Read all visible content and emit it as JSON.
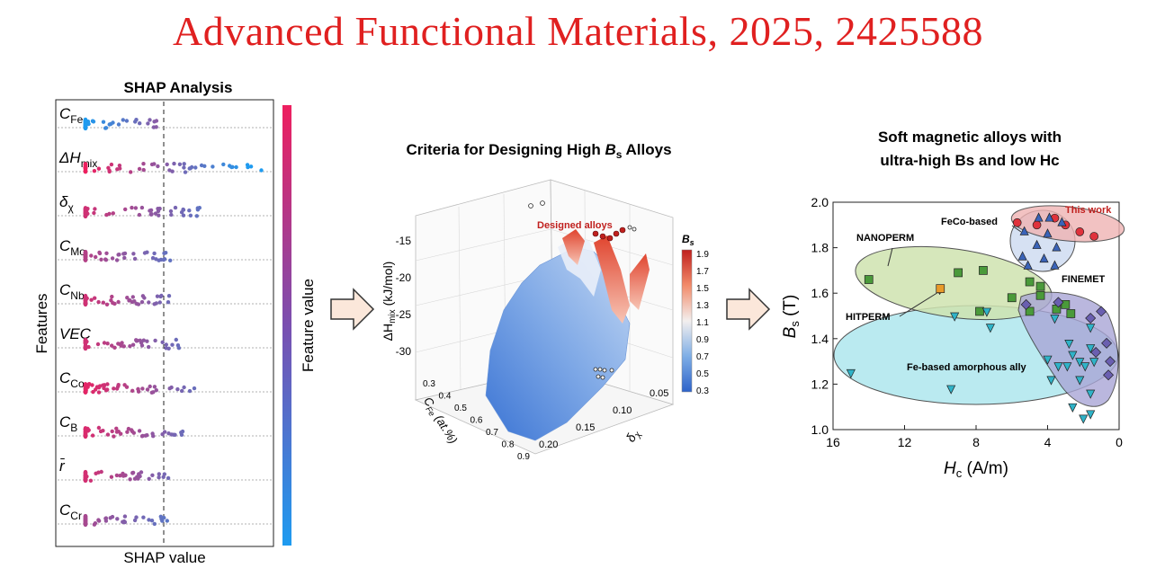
{
  "headline": "Advanced Functional Materials, 2025, 2425588",
  "colors": {
    "headline": "#e02020",
    "high": "#ee1f5f",
    "low": "#1e9bf0",
    "mid": "#7a4fb0"
  },
  "panel_left": {
    "title": "SHAP Analysis",
    "ylabel": "Features",
    "xlabel": "SHAP value",
    "colorbar_label": "Feature value",
    "features": [
      {
        "sym": "C",
        "sub": "Fe"
      },
      {
        "sym": "ΔH",
        "sub": "mix"
      },
      {
        "sym": "δ",
        "sub": "χ"
      },
      {
        "sym": "C",
        "sub": "Mo"
      },
      {
        "sym": "C",
        "sub": "Nb"
      },
      {
        "sym": "VEC",
        "sub": ""
      },
      {
        "sym": "C",
        "sub": "Co"
      },
      {
        "sym": "C",
        "sub": "B"
      },
      {
        "sym": "r̄",
        "sub": ""
      },
      {
        "sym": "C",
        "sub": "Cr"
      }
    ]
  },
  "panel_mid": {
    "title_pre": "Criteria for Designing High ",
    "title_sym": "B",
    "title_sub": "s",
    "title_post": " Alloys",
    "annotation": "Designed alloys",
    "zlabel": "ΔH",
    "zlabel_sub": "mix",
    "zlabel_post": " (kJ/mol)",
    "z_ticks": [
      "-15",
      "-20",
      "-25",
      "-30"
    ],
    "x_label": "C",
    "x_label_sub": "Fe",
    "x_label_post": " (at.%)",
    "x_ticks": [
      "0.3",
      "0.4",
      "0.5",
      "0.6",
      "0.7",
      "0.8",
      "0.9"
    ],
    "y_label": "δ",
    "y_label_sub": "χ",
    "y_ticks": [
      "0.05",
      "0.10",
      "0.15",
      "0.20"
    ],
    "colorbar_title": "B",
    "colorbar_title_sub": "s",
    "colorbar_ticks": [
      "1.9",
      "1.7",
      "1.5",
      "1.3",
      "1.1",
      "0.9",
      "0.7",
      "0.5",
      "0.3"
    ]
  },
  "panel_right": {
    "title_line1": "Soft magnetic alloys with",
    "title_line2": "ultra-high Bs and low Hc",
    "chart_data": {
      "type": "scatter",
      "xlabel": "H",
      "xlabel_sub": "c",
      "xlabel_post": " (A/m)",
      "ylabel": "B",
      "ylabel_sub": "s",
      "ylabel_post": " (T)",
      "xlim": [
        16,
        0
      ],
      "ylim": [
        1.0,
        2.0
      ],
      "x_ticks": [
        "16",
        "12",
        "8",
        "4",
        "0"
      ],
      "y_ticks": [
        "1.0",
        "1.2",
        "1.4",
        "1.6",
        "1.8",
        "2.0"
      ],
      "groups": [
        {
          "name": "This work",
          "marker": "circle",
          "fill": "#e0323c",
          "points": [
            [
              4.6,
              1.9
            ],
            [
              3.0,
              1.9
            ],
            [
              2.2,
              1.87
            ],
            [
              1.4,
              1.85
            ],
            [
              5.7,
              1.91
            ],
            [
              3.6,
              1.93
            ]
          ]
        },
        {
          "name": "FeCo-based",
          "marker": "triangle-up",
          "fill": "#3a63b8",
          "points": [
            [
              4.5,
              1.93
            ],
            [
              3.9,
              1.93
            ],
            [
              3.2,
              1.91
            ],
            [
              5.3,
              1.87
            ],
            [
              4.0,
              1.86
            ],
            [
              4.6,
              1.81
            ],
            [
              3.5,
              1.8
            ],
            [
              5.4,
              1.76
            ],
            [
              4.2,
              1.75
            ],
            [
              3.6,
              1.72
            ],
            [
              5.1,
              1.72
            ]
          ]
        },
        {
          "name": "NANOPERM",
          "marker": "square",
          "fill": "#4a9a3a",
          "points": [
            [
              14.0,
              1.66
            ],
            [
              9.0,
              1.69
            ],
            [
              7.6,
              1.7
            ],
            [
              5.0,
              1.65
            ],
            [
              4.4,
              1.63
            ],
            [
              4.4,
              1.59
            ],
            [
              6.0,
              1.58
            ],
            [
              3.0,
              1.55
            ],
            [
              3.5,
              1.53
            ],
            [
              5.0,
              1.52
            ],
            [
              7.8,
              1.52
            ],
            [
              2.7,
              1.51
            ]
          ]
        },
        {
          "name": "HITPERM",
          "marker": "square",
          "fill": "#e89a2a",
          "points": [
            [
              10.0,
              1.62
            ]
          ]
        },
        {
          "name": "FINEMET",
          "marker": "diamond",
          "fill": "#6a5fb0",
          "points": [
            [
              3.4,
              1.56
            ],
            [
              5.2,
              1.55
            ],
            [
              1.0,
              1.52
            ],
            [
              1.6,
              1.49
            ],
            [
              0.7,
              1.38
            ],
            [
              1.3,
              1.34
            ],
            [
              0.5,
              1.3
            ],
            [
              0.6,
              1.24
            ]
          ]
        },
        {
          "name": "Fe-based amorphous ally",
          "marker": "triangle-down",
          "fill": "#2fb3c8",
          "points": [
            [
              15.0,
              1.25
            ],
            [
              9.4,
              1.18
            ],
            [
              9.2,
              1.5
            ],
            [
              7.4,
              1.52
            ],
            [
              7.2,
              1.45
            ],
            [
              3.6,
              1.49
            ],
            [
              1.6,
              1.45
            ],
            [
              2.8,
              1.38
            ],
            [
              2.6,
              1.33
            ],
            [
              2.2,
              1.3
            ],
            [
              1.6,
              1.36
            ],
            [
              4.0,
              1.31
            ],
            [
              3.4,
              1.28
            ],
            [
              2.9,
              1.28
            ],
            [
              1.9,
              1.28
            ],
            [
              1.4,
              1.3
            ],
            [
              3.8,
              1.22
            ],
            [
              2.2,
              1.22
            ],
            [
              1.6,
              1.16
            ],
            [
              2.6,
              1.1
            ],
            [
              1.6,
              1.07
            ],
            [
              2.0,
              1.05
            ]
          ]
        }
      ],
      "annotations": [
        "This work",
        "FeCo-based",
        "NANOPERM",
        "FINEMET",
        "HITPERM",
        "Fe-based amorphous ally"
      ]
    }
  }
}
